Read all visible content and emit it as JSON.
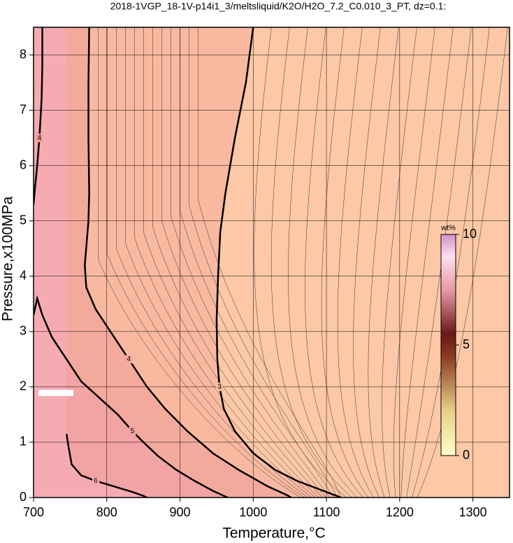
{
  "chart_data": {
    "type": "contour",
    "title": "2018-1VGP_18-1V-p14i1_3/meltsliquid/K2O/H2O_7.2_C0.010_3_PT, dz=0.1:",
    "x_label": "Temperature,°C",
    "y_label": "Pressure,x100MPa",
    "xlim": [
      700,
      1350
    ],
    "ylim": [
      0,
      8.5
    ],
    "xticks": [
      700,
      800,
      900,
      1000,
      1100,
      1200,
      1300
    ],
    "yticks": [
      0,
      1,
      2,
      3,
      4,
      5,
      6,
      7,
      8
    ],
    "grid": true,
    "background": "#fcc8a6",
    "contours": [
      {
        "level": 3,
        "fill": "#f9b9a0",
        "x": [
          1000,
          990,
          975,
          962,
          955,
          952,
          950,
          951,
          954,
          960,
          975,
          1000,
          1030,
          1060,
          1090,
          1110,
          1120
        ],
        "y": [
          8.5,
          7.5,
          6.5,
          5.5,
          4.8,
          4.0,
          3.2,
          2.5,
          2.0,
          1.6,
          1.2,
          0.8,
          0.5,
          0.3,
          0.15,
          0.05,
          0
        ]
      },
      {
        "level": 4,
        "fill": "#f3aa9c",
        "x": [
          776,
          775,
          775,
          776,
          775,
          770,
          772,
          785,
          805,
          830,
          855,
          880,
          910,
          945,
          980,
          1020,
          1045,
          1052
        ],
        "y": [
          8.5,
          7.5,
          6.5,
          5.5,
          5.0,
          4.2,
          3.8,
          3.4,
          3.0,
          2.5,
          2.0,
          1.6,
          1.2,
          0.8,
          0.5,
          0.2,
          0.05,
          0
        ]
      },
      {
        "level": 4,
        "fill": "#ee9e98",
        "x": [
          712,
          712,
          711,
          708,
          705,
          702,
          700
        ],
        "y": [
          8.5,
          7.8,
          7.2,
          6.5,
          6.0,
          5.6,
          5.3
        ]
      },
      {
        "level": 5,
        "fill": "#f2a3a4",
        "x": [
          700,
          705,
          712,
          725,
          745,
          765,
          790,
          815,
          835,
          850,
          870,
          895,
          920,
          945,
          960,
          965
        ],
        "y": [
          3.3,
          3.6,
          3.3,
          2.9,
          2.5,
          2.1,
          1.8,
          1.5,
          1.2,
          1.0,
          0.75,
          0.5,
          0.3,
          0.12,
          0.03,
          0
        ]
      },
      {
        "level": 6,
        "fill": "#f6abb3",
        "x": [
          745,
          748,
          752,
          765,
          785,
          810,
          835,
          850,
          855
        ],
        "y": [
          1.15,
          0.9,
          0.6,
          0.4,
          0.3,
          0.2,
          0.1,
          0.03,
          0
        ]
      }
    ],
    "colorbar": {
      "label": "wt%",
      "lim": [
        0,
        10
      ],
      "ticks": [
        0,
        5,
        10
      ]
    }
  }
}
